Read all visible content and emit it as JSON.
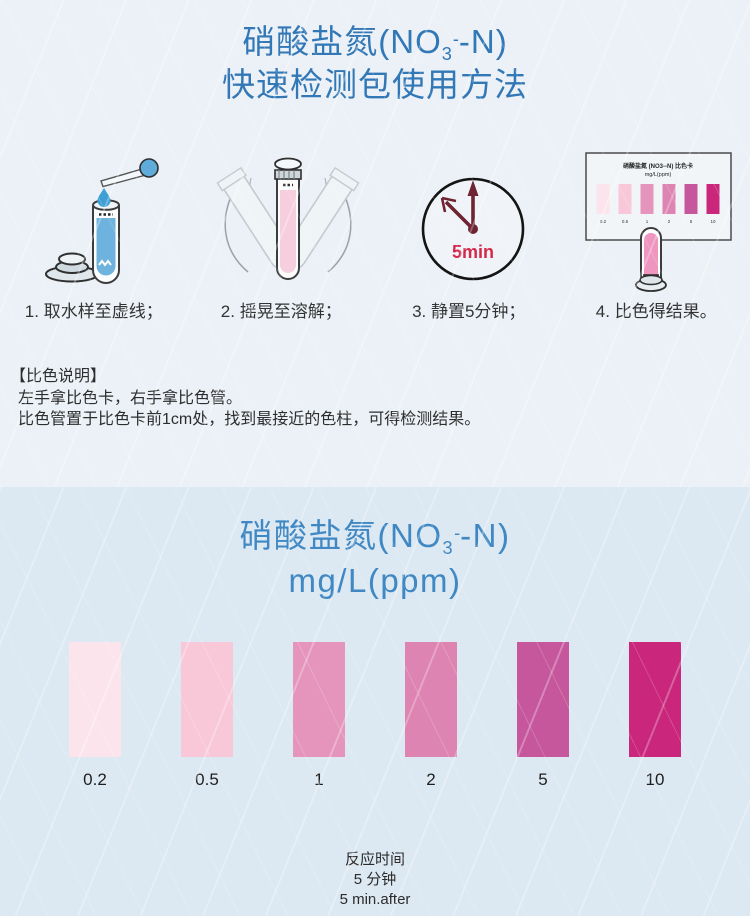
{
  "header": {
    "title_pre": "硝酸盐氮(NO",
    "title_sub": "3",
    "title_sup": "-",
    "title_post": "-N)",
    "title_line2": "快速检测包使用方法",
    "title_color": "#3277b6"
  },
  "steps": [
    {
      "caption": "1. 取水样至虚线；",
      "illustration": "dropper-and-tube"
    },
    {
      "caption": "2. 摇晃至溶解；",
      "illustration": "shaking-tube"
    },
    {
      "caption": "3. 静置5分钟；",
      "illustration": "clock",
      "clock_label": "5min"
    },
    {
      "caption": "4. 比色得结果。",
      "illustration": "color-card-compare"
    }
  ],
  "mini_card": {
    "title_line1": "硝酸盐氮 (NO3--N) 比色卡",
    "title_line2": "mg/L(ppm)"
  },
  "notes": {
    "heading": "【比色说明】",
    "line1": "左手拿比色卡，右手拿比色管。",
    "line2": "比色管置于比色卡前1cm处，找到最接近的色柱，可得检测结果。"
  },
  "scale_section": {
    "title_pre": "硝酸盐氮(NO",
    "title_sub": "3",
    "title_sup": "-",
    "title_post": "-N)",
    "unit_line": "mg/L(ppm)",
    "title_color": "#3f88c3"
  },
  "chart_data": {
    "type": "table",
    "title": "硝酸盐氮(NO3--N) mg/L(ppm) 比色卡",
    "categories": [
      "0.2",
      "0.5",
      "1",
      "2",
      "5",
      "10"
    ],
    "swatch_colors": [
      "#fce4ec",
      "#f8c8d8",
      "#e595bc",
      "#de84b2",
      "#c6579c",
      "#c9267c"
    ]
  },
  "scale": {
    "values": [
      "0.2",
      "0.5",
      "1",
      "2",
      "5",
      "10"
    ],
    "colors": [
      "#fce4ec",
      "#f8c8d8",
      "#e595bc",
      "#de84b2",
      "#c6579c",
      "#c9267c"
    ]
  },
  "footer": {
    "line1": "反应时间",
    "line2": "5  分钟",
    "line3": "5  min.after"
  }
}
